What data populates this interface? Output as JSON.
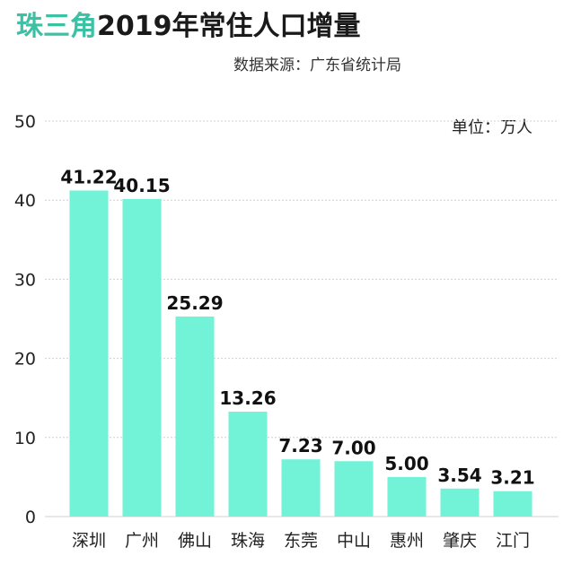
{
  "title": {
    "accent": "珠三角",
    "rest": "2019年常住人口增量"
  },
  "source": "数据来源：广东省统计局",
  "unit": "单位：万人",
  "colors": {
    "bar": "#72f2d6",
    "title_accent": "#3cc1a4",
    "grid": "#d0d0d0",
    "label": "#111111"
  },
  "chart_data": {
    "type": "bar",
    "title": "珠三角2019年常住人口增量",
    "categories": [
      "深圳",
      "广州",
      "佛山",
      "珠海",
      "东莞",
      "中山",
      "惠州",
      "肇庆",
      "江门"
    ],
    "values": [
      41.22,
      40.15,
      25.29,
      13.26,
      7.23,
      7.0,
      5.0,
      3.54,
      3.21
    ],
    "value_labels": [
      "41.22",
      "40.15",
      "25.29",
      "13.26",
      "7.23",
      "7.00",
      "5.00",
      "3.54",
      "3.21"
    ],
    "ylim": [
      0,
      50
    ],
    "yticks": [
      "0",
      "10",
      "20",
      "30",
      "40",
      "50"
    ],
    "grid": true,
    "legend": "none"
  }
}
